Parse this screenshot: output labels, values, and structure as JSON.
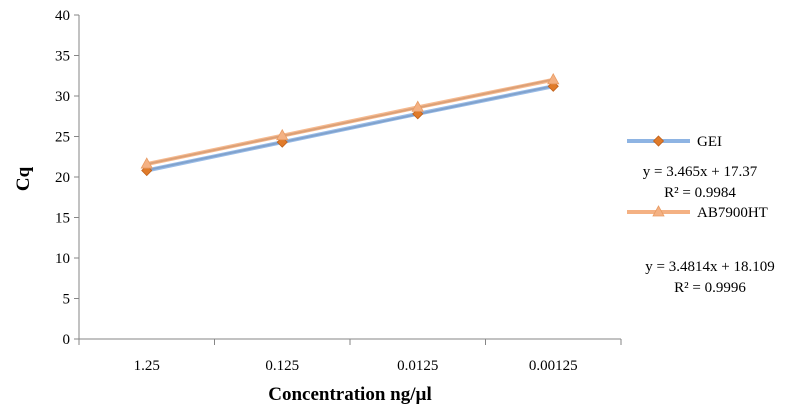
{
  "chart_data": {
    "type": "line",
    "categories": [
      "1.25",
      "0.125",
      "0.0125",
      "0.00125"
    ],
    "series": [
      {
        "name": "GEI",
        "values": [
          20.8,
          24.3,
          27.8,
          31.2
        ],
        "color": "#8eb4e3",
        "marker": "diamond",
        "marker_color": "#e07b2a"
      },
      {
        "name": "AB7900HT",
        "values": [
          21.6,
          25.1,
          28.6,
          32.0
        ],
        "color": "#f4b183",
        "marker": "triangle",
        "marker_color": "#f4b183"
      }
    ],
    "trendlines": [
      {
        "series": "GEI",
        "slope": 3.465,
        "intercept": 17.37,
        "equation": "y = 3.465x + 17.37",
        "r2": "R² = 0.9984",
        "color": "#000000"
      },
      {
        "series": "AB7900HT",
        "slope": 3.4814,
        "intercept": 18.109,
        "equation": "y = 3.4814x + 18.109",
        "r2": "R² = 0.9996",
        "color": "#000000"
      }
    ],
    "xlabel": "Concentration  ng/µl",
    "ylabel": "Cq",
    "ylim": [
      0,
      40
    ],
    "yticks": [
      0,
      5,
      10,
      15,
      20,
      25,
      30,
      35,
      40
    ],
    "grid": false,
    "legend_position": "right"
  }
}
